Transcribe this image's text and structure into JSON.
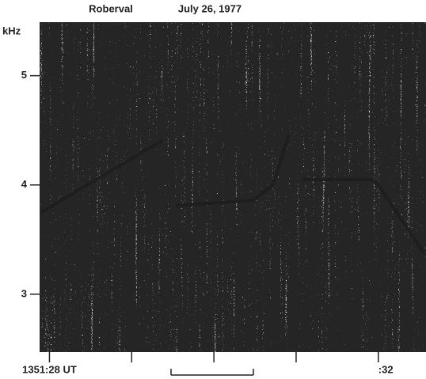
{
  "chart_data": {
    "type": "spectrogram",
    "title": "Roberval",
    "subtitle": "July 26, 1977",
    "y_label": "kHz",
    "xlim": [
      27.88,
      32.58
    ],
    "ylim": [
      2.47,
      5.49
    ],
    "xticks": [
      {
        "value": 28,
        "label": "1351:28 UT"
      },
      {
        "value": 29,
        "label": null
      },
      {
        "value": 30,
        "label": null
      },
      {
        "value": 31,
        "label": null
      },
      {
        "value": 32,
        "label": ":32"
      }
    ],
    "yticks": [
      3,
      4,
      5
    ],
    "color": "#1e1e1e",
    "series": [
      {
        "x": [
          27.9,
          29.38
        ],
        "values": [
          3.75,
          4.41
        ]
      },
      {
        "x": [
          29.54,
          30.48,
          30.72,
          30.91
        ],
        "values": [
          3.81,
          3.86,
          4.0,
          4.46
        ]
      },
      {
        "x": [
          31.08,
          31.92,
          32.0,
          32.55
        ],
        "values": [
          4.05,
          4.05,
          4.0,
          3.38
        ]
      }
    ]
  }
}
